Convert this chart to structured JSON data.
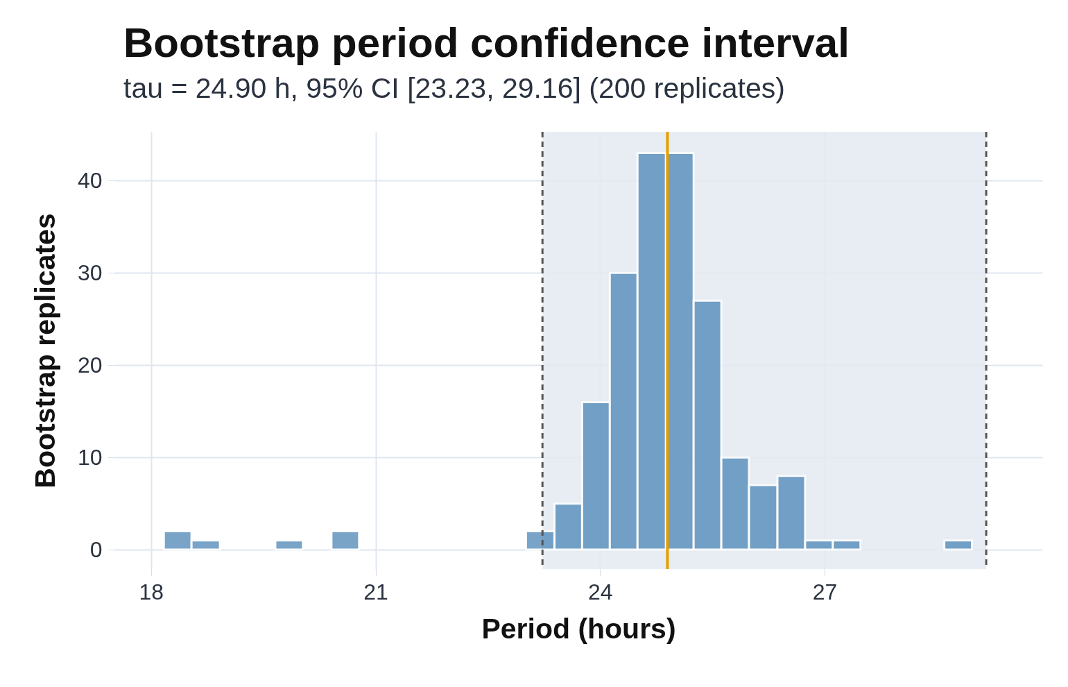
{
  "chart_data": {
    "type": "histogram",
    "title": "Bootstrap period confidence interval",
    "subtitle": "tau = 24.90 h, 95% CI [23.23, 29.16] (200 replicates)",
    "xlabel": "Period (hours)",
    "ylabel": "Bootstrap replicates",
    "bins": [
      18.17,
      18.54,
      18.92,
      19.66,
      20.03,
      20.41,
      20.78,
      23.01,
      23.39,
      23.76,
      24.13,
      24.5,
      24.88,
      25.25,
      25.62,
      25.99,
      26.37,
      26.74,
      27.11,
      27.48,
      28.6,
      28.97
    ],
    "values": [
      2,
      1,
      0,
      1,
      0,
      2,
      0,
      2,
      5,
      16,
      30,
      43,
      43,
      27,
      10,
      7,
      8,
      1,
      1,
      0,
      1
    ],
    "color": "#4682b4",
    "xlim": [
      17.51,
      29.91
    ],
    "xticks": [
      18,
      21,
      24,
      27
    ],
    "ylim": [
      -2.1,
      45.3
    ],
    "yticks": [
      0,
      10,
      20,
      30,
      40
    ],
    "bands": [
      {
        "axis": "x",
        "from": 23.23,
        "to": 29.16,
        "color": "#e3eaf1"
      }
    ],
    "ref_lines": [
      {
        "axis": "x",
        "value": 23.23,
        "color": "#555555",
        "line_style": "dashed"
      },
      {
        "axis": "x",
        "value": 29.16,
        "color": "#555555",
        "line_style": "dashed"
      },
      {
        "axis": "x",
        "value": 24.9,
        "color": "#e69f00",
        "line_style": "solid"
      }
    ],
    "grid": true
  }
}
